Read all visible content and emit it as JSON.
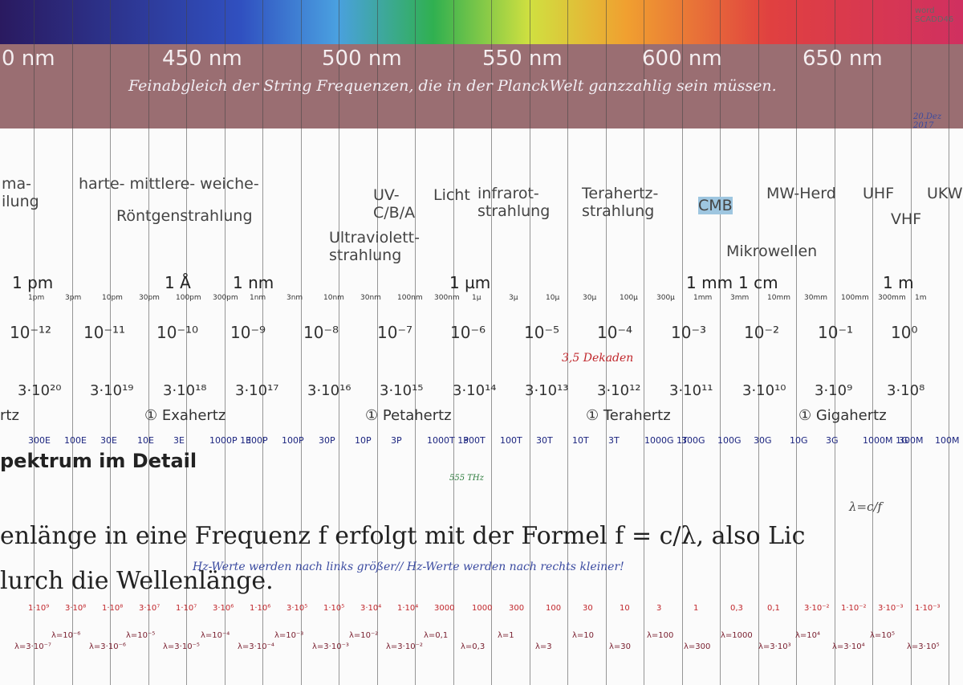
{
  "header": {
    "note": "word SCADD46",
    "date": "20.Dez 2017",
    "nm_labels": [
      "0 nm",
      "450 nm",
      "500 nm",
      "550 nm",
      "600 nm",
      "650 nm"
    ],
    "caption": "Feinabgleich der String Frequenzen, die in der PlanckWelt ganzzahlig sein müssen."
  },
  "regions": {
    "gamma": "ma- ilung",
    "xray_kinds": "harte- mittlere- weiche-",
    "xray": "Röntgenstrahlung",
    "uv": "UV- C/B/A",
    "light": "Licht",
    "ir": "infrarot- strahlung",
    "thz": "Terahertz- strahlung",
    "cmb": "CMB",
    "mw_oven": "MW-Herd",
    "uhf": "UHF",
    "ukw": "UKW",
    "vhf": "VHF",
    "uv_full": "Ultraviolett- strahlung",
    "microwave": "Mikrowellen"
  },
  "units": [
    "1 pm",
    "1 Å",
    "1 nm",
    "1 µm",
    "1 mm",
    "1 cm",
    "1 m"
  ],
  "small_units": [
    "1pm",
    "3pm",
    "10pm",
    "30pm",
    "100pm",
    "300pm",
    "1nm",
    "3nm",
    "10nm",
    "30nm",
    "100nm",
    "300nm",
    "1µ",
    "3µ",
    "10µ",
    "30µ",
    "100µ",
    "300µ",
    "1mm",
    "3mm",
    "10mm",
    "30mm",
    "100mm",
    "300mm",
    "1m"
  ],
  "wavelength_powers": [
    "10⁻¹²",
    "10⁻¹¹",
    "10⁻¹⁰",
    "10⁻⁹",
    "10⁻⁸",
    "10⁻⁷",
    "10⁻⁶",
    "10⁻⁵",
    "10⁻⁴",
    "10⁻³",
    "10⁻²",
    "10⁻¹",
    "10⁰"
  ],
  "decades_note": "3,5 Dekaden",
  "frequency_powers": [
    "3·10²⁰",
    "3·10¹⁹",
    "3·10¹⁸",
    "3·10¹⁷",
    "3·10¹⁶",
    "3·10¹⁵",
    "3·10¹⁴",
    "3·10¹³",
    "3·10¹²",
    "3·10¹¹",
    "3·10¹⁰",
    "3·10⁹",
    "3·10⁸"
  ],
  "hertz_labels": [
    "rtz",
    "① Exahertz",
    "① Petahertz",
    "① Terahertz",
    "① Gigahertz"
  ],
  "frequency_strip": [
    "300E",
    "100E",
    "30E",
    "10E",
    "3E",
    "1000P 1E",
    "300P",
    "100P",
    "30P",
    "10P",
    "3P",
    "1000T 1P",
    "300T",
    "100T",
    "30T",
    "10T",
    "3T",
    "1000G 1T",
    "300G",
    "100G",
    "30G",
    "10G",
    "3G",
    "1000M 1G",
    "300M",
    "100M"
  ],
  "document": {
    "heading": "pektrum im Detail",
    "line1": "enlänge in eine Frequenz f erfolgt mit der Formel  f = c/λ, also Lic",
    "line2": "lurch die Wellenlänge."
  },
  "handwritten": {
    "formula": "λ=c/f",
    "remark": "Hz-Werte werden nach links größer// Hz-Werte werden nach rechts kleiner!",
    "thz_note": "555 THz"
  },
  "hz_values": [
    "1·10⁹",
    "3·10⁸",
    "1·10⁸",
    "3·10⁷",
    "1·10⁷",
    "3·10⁶",
    "1·10⁶",
    "3·10⁵",
    "1·10⁵",
    "3·10⁴",
    "1·10⁴",
    "3000",
    "1000",
    "300",
    "100",
    "30",
    "10",
    "3",
    "1",
    "0,3",
    "0,1",
    "3·10⁻²",
    "1·10⁻²",
    "3·10⁻³",
    "1·10⁻³"
  ],
  "lambda_values": [
    "λ=3·10⁻⁷",
    "λ=10⁻⁶",
    "λ=3·10⁻⁶",
    "λ=10⁻⁵",
    "λ=3·10⁻⁵",
    "λ=10⁻⁴",
    "λ=3·10⁻⁴",
    "λ=10⁻³",
    "λ=3·10⁻³",
    "λ=10⁻²",
    "λ=3·10⁻²",
    "λ=0,1",
    "λ=0,3",
    "λ=1",
    "λ=3",
    "λ=10",
    "λ=30",
    "λ=100",
    "λ=300",
    "λ=1000",
    "λ=3·10³",
    "λ=10⁴",
    "λ=3·10⁴",
    "λ=10⁵",
    "λ=3·10⁵"
  ]
}
